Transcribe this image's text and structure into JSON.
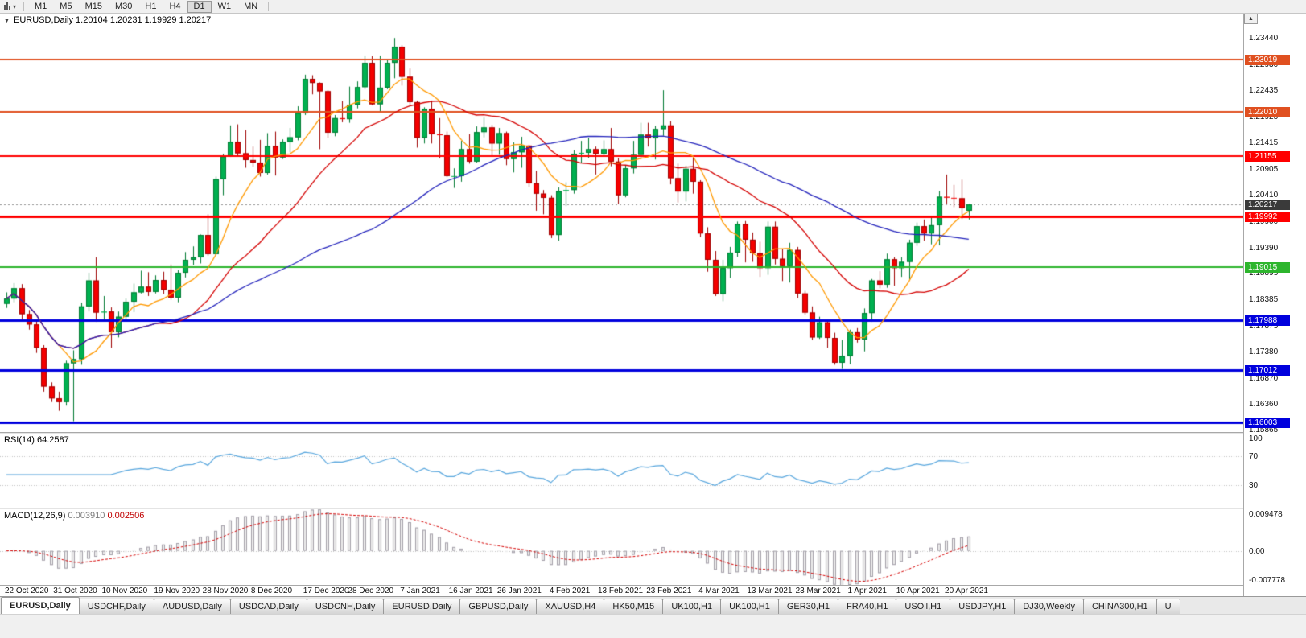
{
  "toolbar": {
    "timeframes": [
      "M1",
      "M5",
      "M15",
      "M30",
      "H1",
      "H4",
      "D1",
      "W1",
      "MN"
    ],
    "active_timeframe": "D1"
  },
  "icons": {
    "title_caret": "▼",
    "toolbar_caret": "▾",
    "scroll_up": "▲"
  },
  "chart": {
    "title_symbol": "EURUSD,Daily",
    "title_ohlc": "1.20104 1.20231 1.19929 1.20217"
  },
  "chart_data": {
    "type": "candlestick",
    "symbol": "EURUSD",
    "timeframe": "Daily",
    "last_bar_ohlc": {
      "open": 1.20104,
      "high": 1.20231,
      "low": 1.19929,
      "close": 1.20217
    },
    "price_min": 1.1582,
    "price_max": 1.2391,
    "price_axis_ticks": [
      "1.23440",
      "1.22930",
      "1.22435",
      "1.21925",
      "1.21415",
      "1.20905",
      "1.20410",
      "1.19900",
      "1.19390",
      "1.18895",
      "1.18385",
      "1.17875",
      "1.17380",
      "1.16870",
      "1.16360",
      "1.15865"
    ],
    "colors": {
      "up_fill": "#00b050",
      "up_border": "#007a32",
      "down_fill": "#f40000",
      "down_border": "#9e0000",
      "background": "#ffffff"
    },
    "candles": [
      [
        1.183,
        1.1852,
        1.1822,
        1.184
      ],
      [
        1.184,
        1.187,
        1.1833,
        1.186
      ],
      [
        1.186,
        1.1868,
        1.18,
        1.181
      ],
      [
        1.181,
        1.1818,
        1.178,
        1.179
      ],
      [
        1.179,
        1.1796,
        1.1735,
        1.1745
      ],
      [
        1.1745,
        1.175,
        1.166,
        1.167
      ],
      [
        1.167,
        1.1678,
        1.164,
        1.1647
      ],
      [
        1.1647,
        1.166,
        1.1623,
        1.164
      ],
      [
        1.164,
        1.172,
        1.1633,
        1.1715
      ],
      [
        1.1715,
        1.174,
        1.1603,
        1.1723
      ],
      [
        1.1723,
        1.1832,
        1.1712,
        1.1825
      ],
      [
        1.1825,
        1.189,
        1.1815,
        1.1875
      ],
      [
        1.1875,
        1.192,
        1.1795,
        1.1813
      ],
      [
        1.1813,
        1.1845,
        1.18,
        1.1815
      ],
      [
        1.1815,
        1.1823,
        1.1745,
        1.1775
      ],
      [
        1.1775,
        1.1815,
        1.1765,
        1.1805
      ],
      [
        1.1805,
        1.184,
        1.1798,
        1.1834
      ],
      [
        1.1834,
        1.1869,
        1.1814,
        1.1852
      ],
      [
        1.1852,
        1.1894,
        1.185,
        1.1863
      ],
      [
        1.1863,
        1.1891,
        1.1845,
        1.1853
      ],
      [
        1.1853,
        1.1885,
        1.185,
        1.1876
      ],
      [
        1.1876,
        1.1892,
        1.1849,
        1.1857
      ],
      [
        1.1857,
        1.1906,
        1.1838,
        1.1842
      ],
      [
        1.1842,
        1.1895,
        1.1833,
        1.189
      ],
      [
        1.189,
        1.193,
        1.1881,
        1.1915
      ],
      [
        1.1915,
        1.1941,
        1.1905,
        1.192
      ],
      [
        1.192,
        1.1964,
        1.1908,
        1.1963
      ],
      [
        1.1963,
        1.2003,
        1.1923,
        1.1926
      ],
      [
        1.1926,
        1.2076,
        1.1924,
        1.2071
      ],
      [
        1.2071,
        1.212,
        1.204,
        1.2115
      ],
      [
        1.2115,
        1.2175,
        1.2114,
        1.2143
      ],
      [
        1.2143,
        1.2177,
        1.2115,
        1.2121
      ],
      [
        1.2121,
        1.2166,
        1.2093,
        1.2108
      ],
      [
        1.2108,
        1.2134,
        1.2095,
        1.2103
      ],
      [
        1.2103,
        1.2147,
        1.2076,
        1.2083
      ],
      [
        1.2083,
        1.216,
        1.208,
        1.2135
      ],
      [
        1.2135,
        1.2163,
        1.2078,
        1.2113
      ],
      [
        1.2113,
        1.2148,
        1.211,
        1.2143
      ],
      [
        1.2143,
        1.217,
        1.2123,
        1.2152
      ],
      [
        1.2152,
        1.2212,
        1.2146,
        1.2199
      ],
      [
        1.2199,
        1.2273,
        1.2195,
        1.2265
      ],
      [
        1.2265,
        1.2272,
        1.2235,
        1.2257
      ],
      [
        1.2257,
        1.2258,
        1.2129,
        1.2241
      ],
      [
        1.2241,
        1.2243,
        1.2151,
        1.2161
      ],
      [
        1.2161,
        1.2195,
        1.2154,
        1.2189
      ],
      [
        1.2189,
        1.2222,
        1.2181,
        1.2187
      ],
      [
        1.2187,
        1.225,
        1.218,
        1.2215
      ],
      [
        1.2215,
        1.226,
        1.2208,
        1.2249
      ],
      [
        1.2249,
        1.231,
        1.2245,
        1.2296
      ],
      [
        1.2296,
        1.2309,
        1.2214,
        1.2216
      ],
      [
        1.2216,
        1.231,
        1.22,
        1.2248
      ],
      [
        1.2248,
        1.2303,
        1.2245,
        1.2296
      ],
      [
        1.2296,
        1.2344,
        1.2266,
        1.2327
      ],
      [
        1.2327,
        1.233,
        1.2252,
        1.2269
      ],
      [
        1.2269,
        1.2285,
        1.2214,
        1.222
      ],
      [
        1.222,
        1.2223,
        1.2132,
        1.2151
      ],
      [
        1.2151,
        1.221,
        1.214,
        1.2207
      ],
      [
        1.2207,
        1.2223,
        1.214,
        1.2158
      ],
      [
        1.2158,
        1.2189,
        1.2111,
        1.2156
      ],
      [
        1.2156,
        1.2163,
        1.2075,
        1.2077
      ],
      [
        1.2077,
        1.2092,
        1.2054,
        1.2077
      ],
      [
        1.2077,
        1.2145,
        1.2066,
        1.2129
      ],
      [
        1.2129,
        1.2158,
        1.2101,
        1.2105
      ],
      [
        1.2105,
        1.2173,
        1.2103,
        1.2162
      ],
      [
        1.2162,
        1.219,
        1.2152,
        1.2171
      ],
      [
        1.2171,
        1.2176,
        1.2116,
        1.214
      ],
      [
        1.214,
        1.217,
        1.2118,
        1.216
      ],
      [
        1.216,
        1.2163,
        1.2098,
        1.211
      ],
      [
        1.211,
        1.2142,
        1.2084,
        1.2123
      ],
      [
        1.2123,
        1.2153,
        1.2093,
        1.2136
      ],
      [
        1.2136,
        1.2137,
        1.2056,
        1.2063
      ],
      [
        1.2063,
        1.2087,
        1.201,
        1.2043
      ],
      [
        1.2043,
        1.205,
        1.2003,
        1.2035
      ],
      [
        1.2035,
        1.204,
        1.1957,
        1.1963
      ],
      [
        1.1963,
        1.2055,
        1.1952,
        1.2048
      ],
      [
        1.2048,
        1.2065,
        1.2019,
        1.205
      ],
      [
        1.205,
        1.2127,
        1.2043,
        1.212
      ],
      [
        1.212,
        1.2145,
        1.2103,
        1.2122
      ],
      [
        1.2122,
        1.2151,
        1.2112,
        1.2129
      ],
      [
        1.2129,
        1.2134,
        1.208,
        1.212
      ],
      [
        1.212,
        1.2146,
        1.2115,
        1.2129
      ],
      [
        1.2129,
        1.217,
        1.2096,
        1.2105
      ],
      [
        1.2105,
        1.2112,
        1.2023,
        1.204
      ],
      [
        1.204,
        1.2098,
        1.2036,
        1.2092
      ],
      [
        1.2092,
        1.2145,
        1.2082,
        1.2118
      ],
      [
        1.2118,
        1.218,
        1.211,
        1.2157
      ],
      [
        1.2157,
        1.218,
        1.2134,
        1.215
      ],
      [
        1.215,
        1.2174,
        1.2109,
        1.2168
      ],
      [
        1.2168,
        1.2243,
        1.2155,
        1.2175
      ],
      [
        1.2175,
        1.2183,
        1.2061,
        1.2073
      ],
      [
        1.2073,
        1.2101,
        1.2026,
        1.2047
      ],
      [
        1.2047,
        1.2097,
        1.2028,
        1.2091
      ],
      [
        1.2091,
        1.2113,
        1.2043,
        1.2066
      ],
      [
        1.2066,
        1.2069,
        1.1959,
        1.1966
      ],
      [
        1.1966,
        1.1978,
        1.1892,
        1.1915
      ],
      [
        1.1915,
        1.1932,
        1.1845,
        1.1849
      ],
      [
        1.1849,
        1.1915,
        1.1835,
        1.1899
      ],
      [
        1.1899,
        1.194,
        1.188,
        1.1929
      ],
      [
        1.1929,
        1.1989,
        1.1921,
        1.1984
      ],
      [
        1.1984,
        1.199,
        1.191,
        1.1954
      ],
      [
        1.1954,
        1.1968,
        1.1911,
        1.1928
      ],
      [
        1.1928,
        1.195,
        1.1882,
        1.1899
      ],
      [
        1.1899,
        1.1989,
        1.1886,
        1.1979
      ],
      [
        1.1979,
        1.1989,
        1.1906,
        1.1917
      ],
      [
        1.1917,
        1.1936,
        1.1874,
        1.1903
      ],
      [
        1.1903,
        1.1948,
        1.1871,
        1.1934
      ],
      [
        1.1934,
        1.194,
        1.1841,
        1.185
      ],
      [
        1.185,
        1.1855,
        1.1809,
        1.1813
      ],
      [
        1.1813,
        1.1825,
        1.176,
        1.1765
      ],
      [
        1.1765,
        1.1805,
        1.1762,
        1.1794
      ],
      [
        1.1794,
        1.1797,
        1.1745,
        1.1764
      ],
      [
        1.1764,
        1.1774,
        1.1712,
        1.1716
      ],
      [
        1.1716,
        1.176,
        1.1704,
        1.1729
      ],
      [
        1.1729,
        1.178,
        1.1713,
        1.1775
      ],
      [
        1.1775,
        1.1783,
        1.1755,
        1.1761
      ],
      [
        1.1761,
        1.1821,
        1.1738,
        1.1812
      ],
      [
        1.1812,
        1.1878,
        1.1795,
        1.1875
      ],
      [
        1.1875,
        1.1893,
        1.186,
        1.1867
      ],
      [
        1.1867,
        1.1927,
        1.1861,
        1.1916
      ],
      [
        1.1916,
        1.192,
        1.1865,
        1.1899
      ],
      [
        1.1899,
        1.192,
        1.1882,
        1.1911
      ],
      [
        1.1911,
        1.1954,
        1.1877,
        1.1948
      ],
      [
        1.1948,
        1.1987,
        1.1942,
        1.198
      ],
      [
        1.198,
        1.1993,
        1.1952,
        1.1966
      ],
      [
        1.1966,
        1.1996,
        1.1945,
        1.1982
      ],
      [
        1.1982,
        1.2048,
        1.1943,
        1.2037
      ],
      [
        1.2037,
        1.208,
        1.2023,
        1.2035
      ],
      [
        1.2035,
        1.206,
        1.2017,
        1.2034
      ],
      [
        1.2034,
        1.207,
        1.1994,
        1.2015
      ],
      [
        1.201,
        1.2023,
        1.1993,
        1.2022
      ]
    ],
    "dates": [
      {
        "label": "22 Oct 2020",
        "bar": 0
      },
      {
        "label": "31 Oct 2020",
        "bar": 6.5
      },
      {
        "label": "10 Nov 2020",
        "bar": 13
      },
      {
        "label": "19 Nov 2020",
        "bar": 20
      },
      {
        "label": "28 Nov 2020",
        "bar": 26.5
      },
      {
        "label": "8 Dec 2020",
        "bar": 33
      },
      {
        "label": "17 Dec 2020",
        "bar": 40
      },
      {
        "label": "28 Dec 2020",
        "bar": 46
      },
      {
        "label": "7 Jan 2021",
        "bar": 53
      },
      {
        "label": "16 Jan 2021",
        "bar": 59.5
      },
      {
        "label": "26 Jan 2021",
        "bar": 66
      },
      {
        "label": "4 Feb 2021",
        "bar": 73
      },
      {
        "label": "13 Feb 2021",
        "bar": 79.5
      },
      {
        "label": "23 Feb 2021",
        "bar": 86
      },
      {
        "label": "4 Mar 2021",
        "bar": 93
      },
      {
        "label": "13 Mar 2021",
        "bar": 99.5
      },
      {
        "label": "23 Mar 2021",
        "bar": 106
      },
      {
        "label": "1 Apr 2021",
        "bar": 113
      },
      {
        "label": "10 Apr 2021",
        "bar": 119.5
      },
      {
        "label": "20 Apr 2021",
        "bar": 126
      }
    ],
    "moving_averages": [
      {
        "period": 8,
        "color": "#ff9900",
        "name": "fast-ma"
      },
      {
        "period": 21,
        "color": "#d40000",
        "name": "medium-ma"
      },
      {
        "period": 50,
        "color": "#2222bb",
        "name": "slow-ma"
      }
    ],
    "hlines": [
      {
        "value": 1.23019,
        "display": "1.23019",
        "color": "#e05020",
        "width": 2
      },
      {
        "value": 1.2201,
        "display": "1.22010",
        "color": "#e05020",
        "width": 2
      },
      {
        "value": 1.21155,
        "display": "1.21155",
        "color": "#ff0000",
        "width": 2
      },
      {
        "value": 1.19992,
        "display": "1.19992",
        "color": "#ff0000",
        "width": 3
      },
      {
        "value": 1.19015,
        "display": "1.19015",
        "color": "#2db52d",
        "width": 2
      },
      {
        "value": 1.17988,
        "display": "1.17988",
        "color": "#0000dd",
        "width": 3
      },
      {
        "value": 1.17012,
        "display": "1.17012",
        "color": "#0000dd",
        "width": 3
      },
      {
        "value": 1.16003,
        "display": "1.16003",
        "color": "#0000dd",
        "width": 3
      }
    ],
    "current_price": {
      "value": 1.20217,
      "display": "1.20217",
      "line_color": "#909090",
      "tag_bg": "#3a3a3a"
    },
    "rsi": {
      "label": "RSI(14)",
      "current_display": "64.2587",
      "period": 14,
      "line_color": "#58a6dd",
      "levels": [
        70,
        30
      ],
      "range": [
        0,
        100
      ],
      "axis_labels": [
        {
          "label": "100",
          "value": 100
        },
        {
          "label": "70",
          "value": 70
        },
        {
          "label": "30",
          "value": 30
        }
      ]
    },
    "macd": {
      "label": "MACD(12,26,9)",
      "main_display": "0.003910",
      "signal_display": "0.002506",
      "fast": 12,
      "slow": 26,
      "signal_period": 9,
      "hist_fill": "#ededed",
      "hist_border": "#a5a0aa",
      "signal_color": "#d40000",
      "range": [
        -0.007778,
        0.009478
      ],
      "axis_labels": [
        {
          "label": "0.009478",
          "value": 0.009478
        },
        {
          "label": "0.00",
          "value": 0
        },
        {
          "label": "-0.007778",
          "value": -0.007778
        }
      ]
    }
  },
  "tabs": [
    "EURUSD,Daily",
    "USDCHF,Daily",
    "AUDUSD,Daily",
    "USDCAD,Daily",
    "USDCNH,Daily",
    "EURUSD,Daily",
    "GBPUSD,Daily",
    "XAUUSD,H4",
    "HK50,M15",
    "UK100,H1",
    "UK100,H1",
    "GER30,H1",
    "FRA40,H1",
    "USOil,H1",
    "USDJPY,H1",
    "DJ30,Weekly",
    "CHINA300,H1",
    "U"
  ],
  "active_tab_index": 0
}
